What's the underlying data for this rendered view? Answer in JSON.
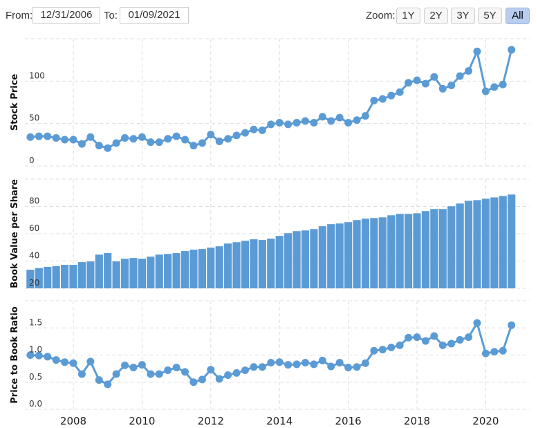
{
  "controls": {
    "from_label": "From:",
    "from_value": "12/31/2006",
    "to_label": "To:",
    "to_value": "01/09/2021",
    "zoom_label": "Zoom:",
    "zoom_buttons": [
      "1Y",
      "2Y",
      "3Y",
      "5Y",
      "All"
    ],
    "zoom_active": "All"
  },
  "colors": {
    "series": "#5b9bd5",
    "grid": "#dddddd"
  },
  "chart_data": [
    {
      "type": "line",
      "ylabel": "Stock Price",
      "ylim": [
        0,
        150
      ],
      "yticks": [
        "0",
        "50",
        "100"
      ],
      "ytick_values": [
        0,
        50,
        100
      ],
      "x_start": 2006.75,
      "x_step": 0.25,
      "values": [
        34,
        35,
        35,
        33,
        31,
        31,
        26,
        34,
        24,
        21,
        27,
        33,
        32,
        34,
        28,
        28,
        32,
        35,
        31,
        24,
        27,
        37,
        29,
        32,
        36,
        39,
        43,
        42,
        49,
        51,
        49,
        51,
        53,
        51,
        58,
        53,
        57,
        51,
        54,
        59,
        77,
        79,
        83,
        87,
        98,
        101,
        97,
        105,
        91,
        95,
        106,
        112,
        135,
        88,
        93,
        96,
        137
      ]
    },
    {
      "type": "bar",
      "ylabel": "Book Value per Share",
      "ylim": [
        20,
        100
      ],
      "yticks": [
        "20",
        "40",
        "60",
        "80"
      ],
      "ytick_values": [
        20,
        40,
        60,
        80
      ],
      "x_start": 2006.75,
      "x_step": 0.25,
      "values": [
        33.6,
        34.8,
        35.7,
        36.2,
        37.2,
        37.2,
        39.2,
        39.7,
        44.7,
        45.8,
        39.7,
        41.7,
        42.2,
        41.7,
        43.2,
        44.7,
        45.2,
        45.8,
        47.3,
        48.3,
        48.8,
        49.8,
        50.8,
        52.8,
        53.8,
        54.8,
        55.9,
        55.4,
        56.4,
        58.4,
        60.4,
        61.9,
        62.4,
        63.4,
        65.5,
        67.0,
        67.5,
        68.5,
        70.0,
        71.0,
        71.5,
        72.0,
        73.5,
        74.5,
        74.5,
        75.0,
        76.6,
        78.1,
        78.1,
        80.1,
        82.1,
        84.1,
        84.6,
        85.6,
        86.6,
        87.6,
        88.7
      ]
    },
    {
      "type": "line",
      "ylabel": "Price to Book Ratio",
      "ylim": [
        0,
        2
      ],
      "yticks": [
        "0.0",
        "0.5",
        "1.0",
        "1.5"
      ],
      "ytick_values": [
        0,
        0.5,
        1.0,
        1.5
      ],
      "x_start": 2006.75,
      "x_step": 0.25,
      "values": [
        1.0,
        0.99,
        0.97,
        0.91,
        0.87,
        0.85,
        0.65,
        0.88,
        0.54,
        0.46,
        0.65,
        0.81,
        0.77,
        0.82,
        0.65,
        0.65,
        0.72,
        0.77,
        0.69,
        0.5,
        0.55,
        0.73,
        0.56,
        0.63,
        0.67,
        0.72,
        0.78,
        0.78,
        0.86,
        0.87,
        0.82,
        0.83,
        0.86,
        0.83,
        0.9,
        0.79,
        0.86,
        0.77,
        0.78,
        0.85,
        1.08,
        1.1,
        1.14,
        1.18,
        1.32,
        1.33,
        1.26,
        1.35,
        1.18,
        1.21,
        1.28,
        1.33,
        1.59,
        1.03,
        1.06,
        1.08,
        1.55
      ]
    }
  ],
  "x_axis": {
    "ticks": [
      "2008",
      "2010",
      "2012",
      "2014",
      "2016",
      "2018",
      "2020"
    ],
    "tick_values": [
      2008,
      2010,
      2012,
      2014,
      2016,
      2018,
      2020
    ]
  }
}
